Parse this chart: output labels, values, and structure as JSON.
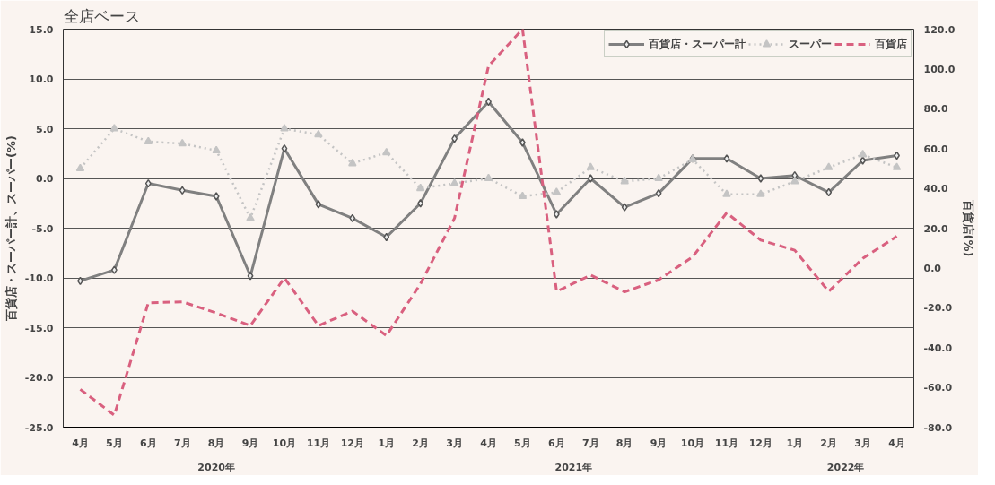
{
  "chart_data": {
    "type": "line",
    "title": "全店ベース",
    "categories": [
      "4月",
      "5月",
      "6月",
      "7月",
      "8月",
      "9月",
      "10月",
      "11月",
      "12月",
      "1月",
      "2月",
      "3月",
      "4月",
      "5月",
      "6月",
      "7月",
      "8月",
      "9月",
      "10月",
      "11月",
      "12月",
      "1月",
      "2月",
      "3月",
      "4月"
    ],
    "annotations": [
      "2020年",
      "2021年",
      "2022年"
    ],
    "ylabel": "百貨店・スーパー計、スーパー(%)",
    "y2label": "百貨店(%)",
    "ylim": [
      -25,
      15
    ],
    "yticks": [
      {
        "value": -25,
        "label": "-25.0"
      },
      {
        "value": -20,
        "label": "-20.0"
      },
      {
        "value": -15,
        "label": "-15.0"
      },
      {
        "value": -10,
        "label": "-10.0"
      },
      {
        "value": -5,
        "label": "-5.0"
      },
      {
        "value": 0,
        "label": "0.0"
      },
      {
        "value": 5,
        "label": "5.0"
      },
      {
        "value": 10,
        "label": "10.0"
      },
      {
        "value": 15,
        "label": "15.0"
      }
    ],
    "y2lim": [
      -80,
      120
    ],
    "y2ticks": [
      {
        "value": -80,
        "label": "-80.0"
      },
      {
        "value": -60,
        "label": "-60.0"
      },
      {
        "value": -40,
        "label": "-40.0"
      },
      {
        "value": -20,
        "label": "-20.0"
      },
      {
        "value": 0,
        "label": "0.0"
      },
      {
        "value": 20,
        "label": "20.0"
      },
      {
        "value": 40,
        "label": "40.0"
      },
      {
        "value": 60,
        "label": "60.0"
      },
      {
        "value": 80,
        "label": "80.0"
      },
      {
        "value": 100,
        "label": "100.0"
      },
      {
        "value": 120,
        "label": "120.0"
      }
    ],
    "grid": "y",
    "legend": "top right",
    "series": [
      {
        "name": "百貨店・スーパー計",
        "color": "#808080",
        "marker": "diamond",
        "line_style": "solid",
        "values": [
          -10.3,
          -9.2,
          -0.5,
          -1.2,
          -1.8,
          -9.8,
          3.0,
          -2.6,
          -4.0,
          -5.9,
          -2.5,
          4.0,
          7.7,
          3.6,
          -3.6,
          0.0,
          -2.9,
          -1.5,
          2.0,
          2.0,
          0.0,
          0.3,
          -1.4,
          1.8,
          2.3
        ]
      },
      {
        "name": "スーパー",
        "color": "#c4c4c4",
        "marker": "triangle",
        "line_style": "dotted",
        "values": [
          1.0,
          5.0,
          3.7,
          3.5,
          2.8,
          -4.0,
          5.0,
          4.4,
          1.5,
          2.6,
          -1.0,
          -0.5,
          0.0,
          -1.8,
          -1.4,
          1.1,
          -0.3,
          0.0,
          1.9,
          -1.6,
          -1.6,
          -0.3,
          1.1,
          2.4,
          1.1
        ]
      },
      {
        "name": "百貨店",
        "color": "#d9607f",
        "marker": "none",
        "line_style": "dashed",
        "axis": "y2",
        "values": [
          -61,
          -74,
          -17.5,
          -17,
          -22.6,
          -29,
          -5,
          -29,
          -21.7,
          -34,
          -8,
          25,
          101.5,
          120,
          -11.8,
          -3.6,
          -12,
          -6,
          5.6,
          27.7,
          14,
          8.9,
          -11.8,
          4.8,
          15.9
        ]
      }
    ]
  }
}
